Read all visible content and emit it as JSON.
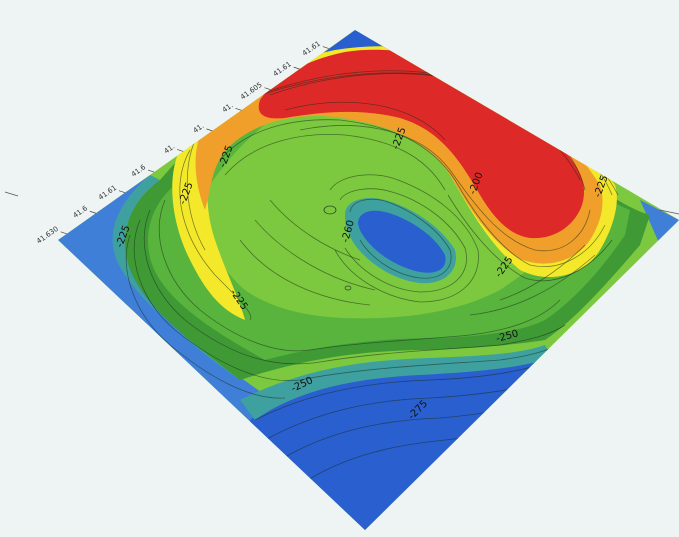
{
  "map": {
    "colors": {
      "background": "#eef3f3",
      "deep_blue": "#2a5fcf",
      "blue": "#3f7fd8",
      "teal": "#3fa0a0",
      "dark_green": "#3f9a36",
      "green": "#58b43c",
      "light_green": "#7cc83e",
      "yellow_green": "#b8d83a",
      "yellow": "#f3e92a",
      "orange": "#f0a02a",
      "red_orange": "#e5602a",
      "red": "#dd2a28",
      "contour": "#1a2a1a"
    },
    "axis_ticks": [
      {
        "id": "tick-0",
        "label": "41.630"
      },
      {
        "id": "tick-1",
        "label": "41.6"
      },
      {
        "id": "tick-2",
        "label": "41.61"
      },
      {
        "id": "tick-3",
        "label": "41.6"
      },
      {
        "id": "tick-4",
        "label": "41."
      },
      {
        "id": "tick-5",
        "label": "41."
      },
      {
        "id": "tick-6",
        "label": "41."
      },
      {
        "id": "tick-7",
        "label": "41.605"
      },
      {
        "id": "tick-8",
        "label": "41.61"
      },
      {
        "id": "tick-9",
        "label": "41.61"
      }
    ],
    "contour_labels": [
      {
        "id": "cl-225-left",
        "label": "-225"
      },
      {
        "id": "cl-225-top-left",
        "label": "-225"
      },
      {
        "id": "cl-225-top-mid",
        "label": "-225"
      },
      {
        "id": "cl-225-right",
        "label": "-225"
      },
      {
        "id": "cl-225-right-low",
        "label": "-225"
      },
      {
        "id": "cl-225-lower-left",
        "label": "-225"
      },
      {
        "id": "cl-250-mid",
        "label": "-250"
      },
      {
        "id": "cl-250-lower",
        "label": "-250"
      },
      {
        "id": "cl-275-bottom",
        "label": "-275"
      },
      {
        "id": "cl-200-ridge",
        "label": "-200"
      },
      {
        "id": "cl-260-pit",
        "label": "-260"
      },
      {
        "id": "cl-225-left-edge",
        "label": "-225"
      }
    ]
  }
}
